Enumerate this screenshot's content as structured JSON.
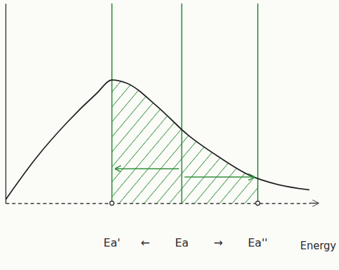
{
  "chart_data": {
    "type": "line",
    "xlabel": "Energy",
    "color": "#222222",
    "tick_labels": false,
    "x": [
      0,
      1,
      2,
      3,
      3.5,
      4,
      5,
      6,
      7,
      8,
      9,
      10
    ],
    "values": [
      0.2,
      2.7,
      4.8,
      6.6,
      7.4,
      7.2,
      5.8,
      4.1,
      2.8,
      1.7,
      1.1,
      0.8
    ],
    "xlim": [
      0,
      10
    ],
    "ylim": [
      0,
      12
    ],
    "annotations": [
      {
        "text": "Ea'",
        "x": 3.5
      },
      {
        "text": "←",
        "x": 4.6
      },
      {
        "text": "Ea",
        "x": 5.8
      },
      {
        "text": "→",
        "x": 7.0
      },
      {
        "text": "Ea''",
        "x": 8.3
      }
    ]
  }
}
